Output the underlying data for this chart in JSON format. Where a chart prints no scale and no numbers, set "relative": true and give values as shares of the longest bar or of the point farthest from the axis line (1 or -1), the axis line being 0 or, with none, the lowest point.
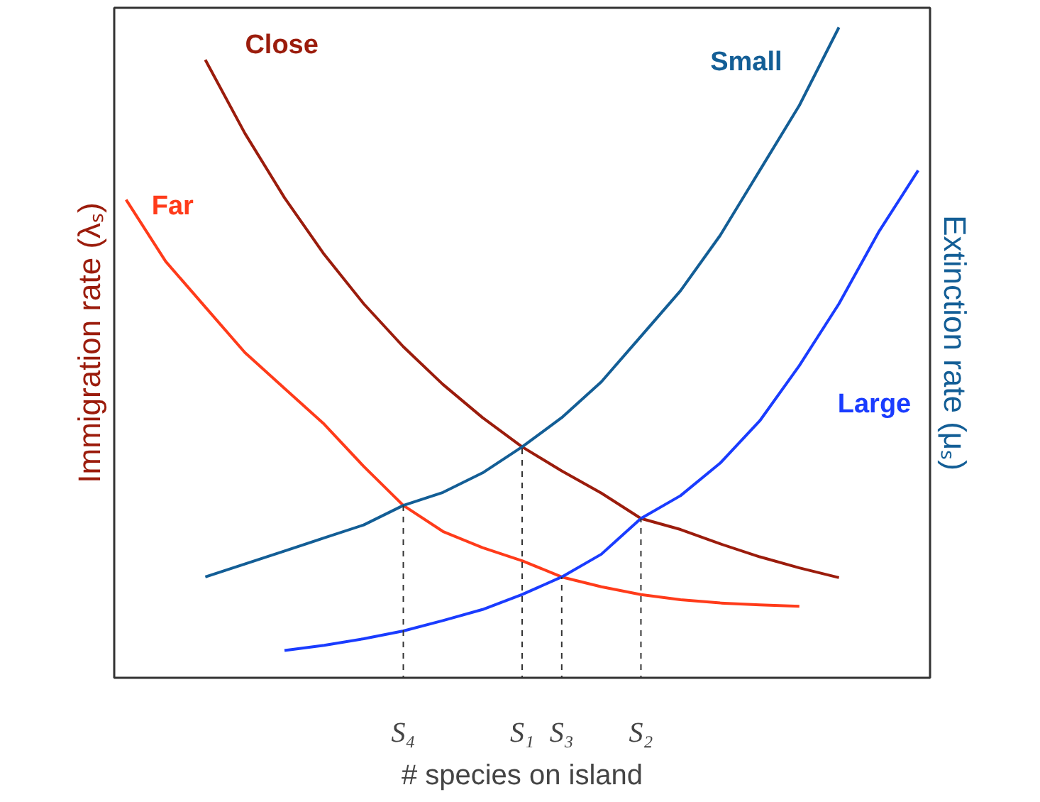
{
  "chart_data": {
    "type": "line",
    "relative": true,
    "xlabel": "# species on island",
    "ylabel": "Immigration rate (λₛ)",
    "y2label": "Extinction rate (μₛ)",
    "categories": [
      null,
      null,
      null,
      null,
      null,
      null,
      null,
      "S₄",
      null,
      null,
      "S₁",
      "S₃",
      null,
      "S₂",
      null,
      null,
      null,
      null,
      null,
      null,
      null
    ],
    "series": [
      {
        "name": "Close",
        "color": "#9b1c0c",
        "values": [
          null,
          null,
          0.95,
          0.837,
          0.738,
          0.651,
          0.575,
          0.509,
          0.451,
          0.4,
          0.355,
          0.318,
          0.284,
          0.245,
          0.228,
          0.206,
          0.186,
          0.169,
          0.154,
          null,
          null
        ]
      },
      {
        "name": "Far",
        "color": "#ff3b1a",
        "values": [
          0.735,
          0.64,
          0.57,
          0.5,
          0.445,
          0.39,
          0.325,
          0.265,
          0.225,
          0.2,
          0.18,
          0.155,
          0.14,
          0.128,
          0.12,
          0.115,
          0.112,
          0.11,
          null,
          null,
          null
        ]
      },
      {
        "name": "Small",
        "color": "#135e96",
        "axis": "y2",
        "values": [
          null,
          null,
          0.155,
          0.175,
          0.195,
          0.215,
          0.235,
          0.265,
          0.285,
          0.315,
          0.355,
          0.4,
          0.455,
          0.525,
          0.595,
          0.68,
          0.78,
          0.88,
          1.0,
          null,
          null
        ]
      },
      {
        "name": "Large",
        "color": "#1a3cff",
        "axis": "y2",
        "values": [
          null,
          null,
          null,
          null,
          0.042,
          0.05,
          0.06,
          0.072,
          0.088,
          0.105,
          0.128,
          0.155,
          0.19,
          0.245,
          0.28,
          0.33,
          0.395,
          0.48,
          0.575,
          0.685,
          0.78
        ]
      }
    ],
    "ref_lines": [
      {
        "axis": "x",
        "value": "S₄",
        "label": null,
        "line_style": "dashed"
      },
      {
        "axis": "x",
        "value": "S₁",
        "label": null,
        "line_style": "dashed"
      },
      {
        "axis": "x",
        "value": "S₃",
        "label": null,
        "line_style": "dashed"
      },
      {
        "axis": "x",
        "value": "S₂",
        "label": null,
        "line_style": "dashed"
      }
    ],
    "grid": false,
    "legend": false,
    "marker": "none",
    "line_style": "solid"
  }
}
